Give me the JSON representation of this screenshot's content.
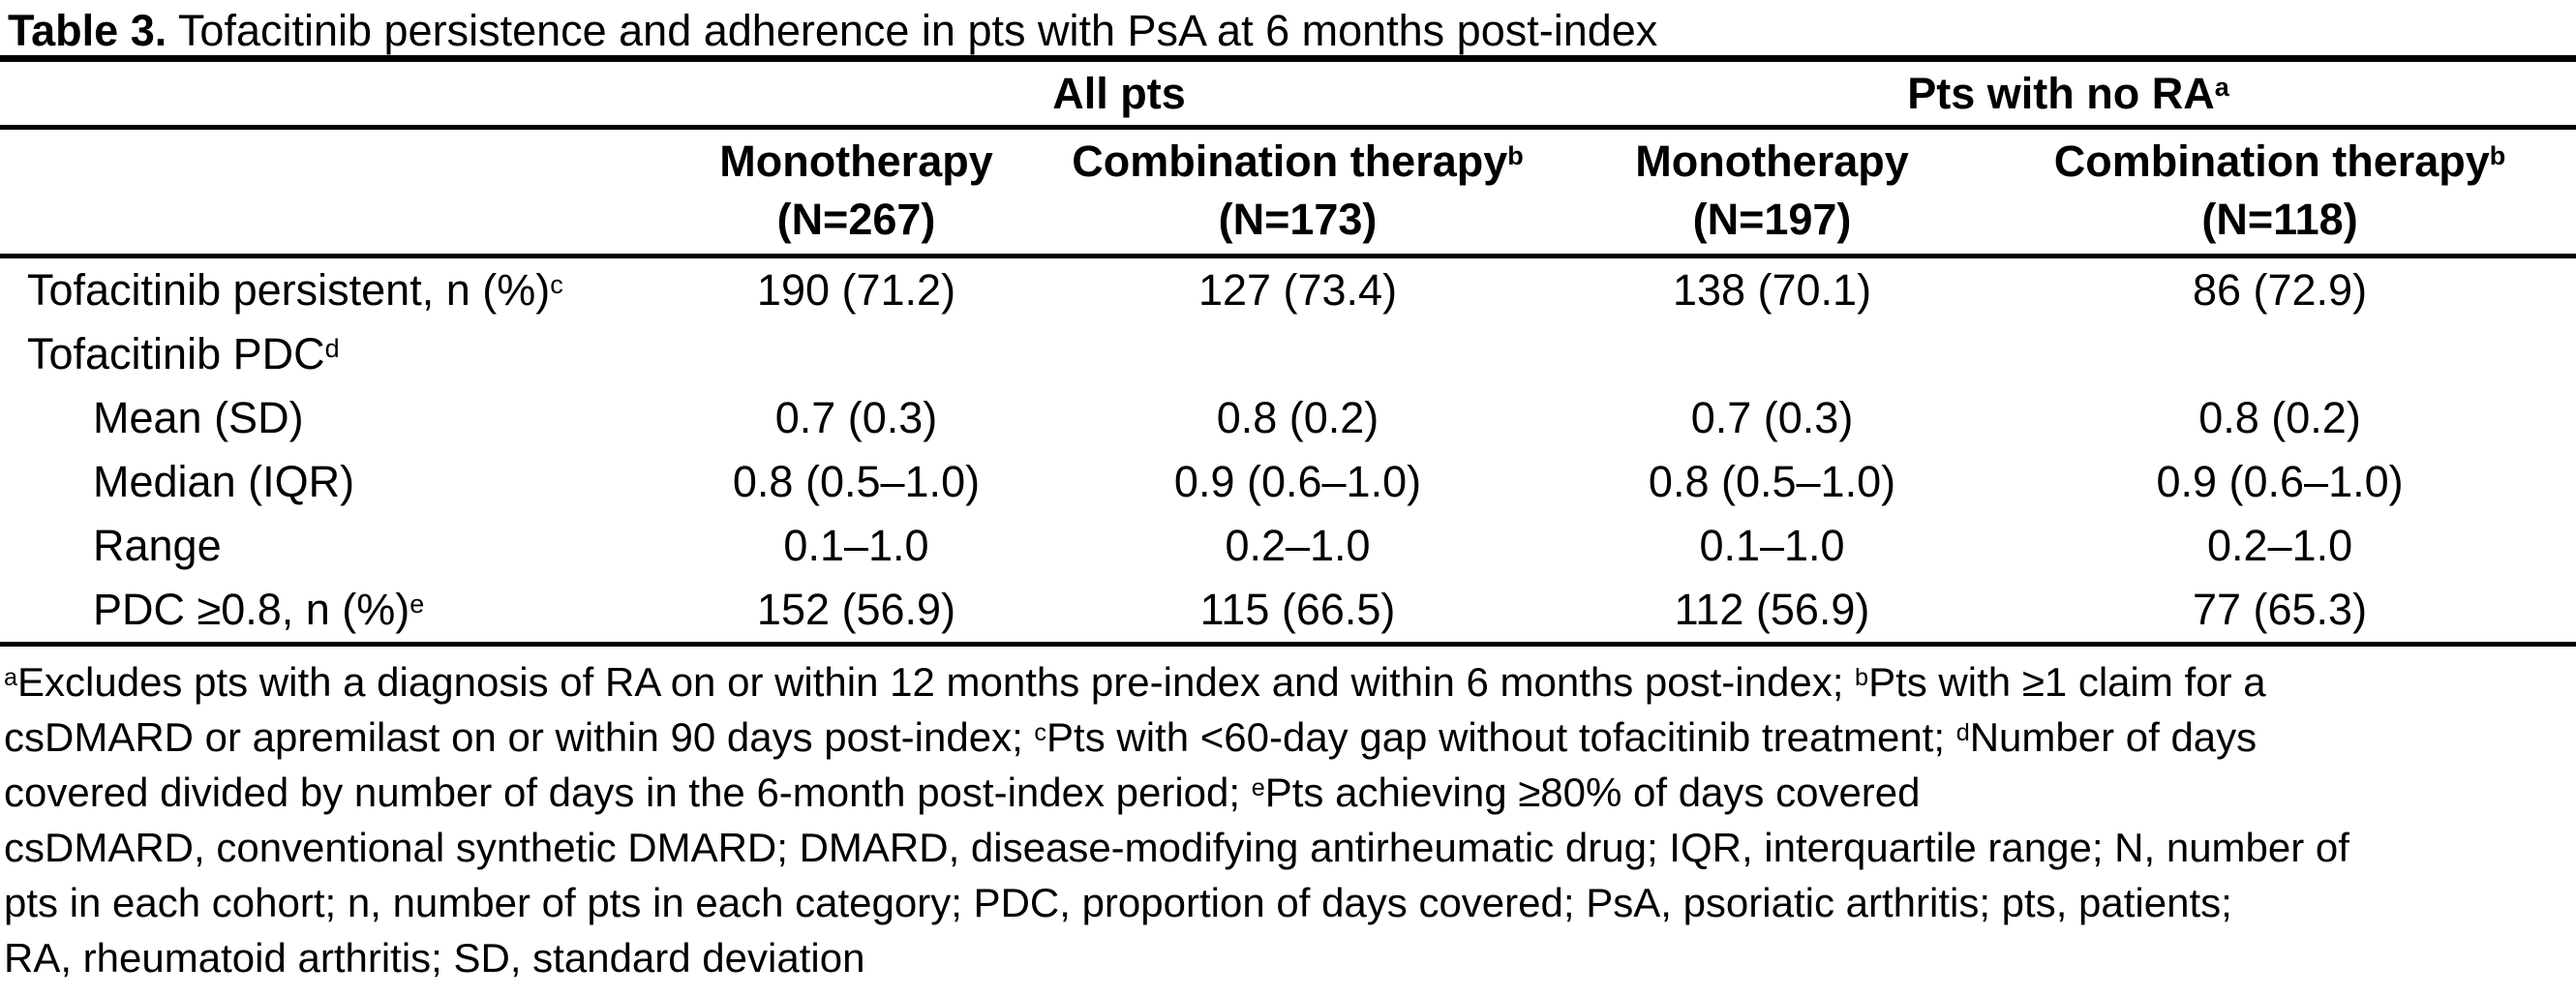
{
  "title": {
    "label": "Table 3.",
    "rest": " Tofacitinib persistence and adherence in pts with PsA at 6 months post-index"
  },
  "table": {
    "groups": [
      {
        "label": "All pts"
      },
      {
        "label": "Pts with no RA^a"
      }
    ],
    "columns": [
      {
        "therapy": "Monotherapy",
        "n": "(N=267)"
      },
      {
        "therapy": "Combination therapy^b",
        "n": "(N=173)"
      },
      {
        "therapy": "Monotherapy",
        "n": "(N=197)"
      },
      {
        "therapy": "Combination therapy^b",
        "n": "(N=118)"
      }
    ],
    "rows": [
      {
        "label": "Tofacitinib persistent, n (%)^c",
        "indent": 0,
        "values": [
          "190 (71.2)",
          "127 (73.4)",
          "138 (70.1)",
          "86 (72.9)"
        ]
      },
      {
        "label": "Tofacitinib PDC^d",
        "indent": 0,
        "values": [
          "",
          "",
          "",
          ""
        ]
      },
      {
        "label": "Mean (SD)",
        "indent": 1,
        "values": [
          "0.7 (0.3)",
          "0.8 (0.2)",
          "0.7 (0.3)",
          "0.8 (0.2)"
        ]
      },
      {
        "label": "Median (IQR)",
        "indent": 1,
        "values": [
          "0.8 (0.5–1.0)",
          "0.9 (0.6–1.0)",
          "0.8 (0.5–1.0)",
          "0.9 (0.6–1.0)"
        ]
      },
      {
        "label": "Range",
        "indent": 1,
        "values": [
          "0.1–1.0",
          "0.2–1.0",
          "0.1–1.0",
          "0.2–1.0"
        ]
      },
      {
        "label": "PDC ≥0.8, n (%)^e",
        "indent": 1,
        "values": [
          "152 (56.9)",
          "115 (66.5)",
          "112 (56.9)",
          "77 (65.3)"
        ]
      }
    ]
  },
  "footnotes": [
    "^aExcludes pts with a diagnosis of RA on or within 12 months pre-index and within 6 months post-index; ^bPts with ≥1 claim for a",
    "csDMARD or apremilast on or within 90 days post-index; ^cPts with <60-day gap without tofacitinib treatment; ^dNumber of days",
    "covered divided by number of days in the 6-month post-index period; ^ePts achieving ≥80% of days covered",
    "csDMARD, conventional synthetic DMARD; DMARD, disease-modifying antirheumatic drug; IQR, interquartile range; N, number of",
    "pts in each cohort; n, number of pts in each category; PDC, proportion of days covered; PsA, psoriatic arthritis; pts, patients;",
    "RA, rheumatoid arthritis; SD, standard deviation"
  ],
  "colors": {
    "text": "#000000",
    "background": "#ffffff",
    "rule": "#000000"
  }
}
